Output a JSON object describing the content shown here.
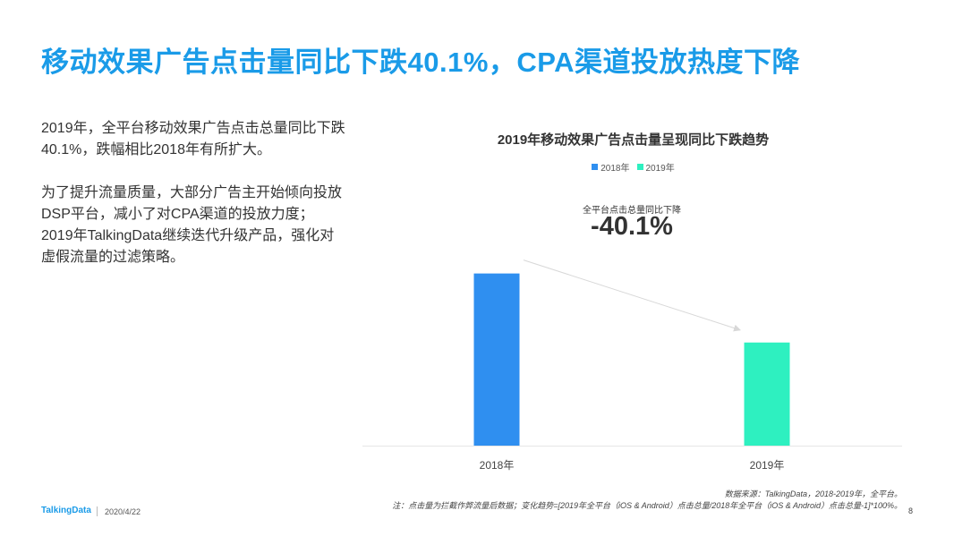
{
  "headline": "移动效果广告点击量同比下跌40.1%，CPA渠道投放热度下降",
  "body": {
    "paragraph_1": "2019年，全平台移动效果广告点击总量同比下跌40.1%，跌幅相比2018年有所扩大。",
    "paragraph_2": "为了提升流量质量，大部分广告主开始倾向投放DSP平台，减小了对CPA渠道的投放力度；2019年TalkingData继续迭代升级产品，强化对虚假流量的过滤策略。"
  },
  "chart_data": {
    "type": "bar",
    "title": "2019年移动效果广告点击量呈现同比下跌趋势",
    "categories": [
      "2018年",
      "2019年"
    ],
    "series": [
      {
        "name": "2018年",
        "values": [
          1.0,
          null
        ],
        "color": "#2f8ff0"
      },
      {
        "name": "2019年",
        "values": [
          null,
          0.599
        ],
        "color": "#2ef0c0"
      }
    ],
    "legend_position": "top-center",
    "grid": false,
    "y_axis_visible": false,
    "ylim": [
      0,
      1.05
    ],
    "annotation": {
      "label": "全平台点击总量同比下降",
      "value": "-40.1%"
    }
  },
  "footer": {
    "logo": "TalkingData",
    "date": "2020/4/22",
    "source_line": "数据来源：TalkingData，2018-2019年，全平台。",
    "note_line": "注：点击量为拦截作弊流量后数据；变化趋势=[2019年全平台（iOS & Android）点击总量/2018年全平台（iOS & Android）点击总量-1]*100%。",
    "page_number": "8"
  },
  "colors": {
    "accent": "#1a9be8",
    "bar_2018": "#2f8ff0",
    "bar_2019": "#2ef0c0"
  }
}
